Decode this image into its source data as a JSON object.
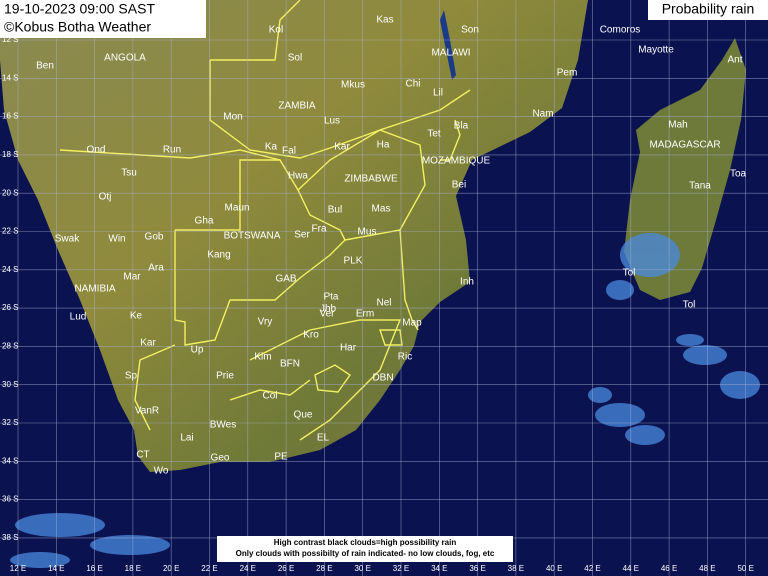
{
  "header": {
    "datetime": "19-10-2023 09:00 SAST",
    "credit": "©Kobus Botha Weather",
    "product": "Probability rain"
  },
  "legend": [
    "High contrast black clouds=high possibility rain",
    "Only clouds with possibilty of rain indicated- no low clouds, fog, etc"
  ],
  "lat_labels": [
    "12 S",
    "14 S",
    "16 S",
    "18 S",
    "20 S",
    "22 S",
    "24 S",
    "26 S",
    "28 S",
    "30 S",
    "32 S",
    "34 S",
    "36 S",
    "38 S"
  ],
  "lon_labels": [
    "12 E",
    "14 E",
    "16 E",
    "18 E",
    "20 E",
    "22 E",
    "24 E",
    "26 E",
    "28 E",
    "30 E",
    "32 E",
    "34 E",
    "36 E",
    "38 E",
    "40 E",
    "42 E",
    "44 E",
    "46 E",
    "48 E",
    "50 E"
  ],
  "places": [
    "Kas",
    "Kol",
    "Sol",
    "Son",
    "MALAWI",
    "Comoros",
    "Mayotte",
    "Ant",
    "Ben",
    "ANGOLA",
    "Mkus",
    "Chi",
    "Lil",
    "Pem",
    "ZAMBIA",
    "Mon",
    "Lus",
    "Bla",
    "Nam",
    "Mah",
    "Ond",
    "Run",
    "Ka",
    "Fal",
    "Kar",
    "Ha",
    "Tet",
    "MOZAMBIQUE",
    "MADAGASCAR",
    "Tsu",
    "Hwa",
    "ZIMBABWE",
    "Bei",
    "Tana",
    "Toa",
    "Otj",
    "Maun",
    "Bul",
    "Mas",
    "Gha",
    "Swak",
    "Win",
    "Gob",
    "BOTSWANA",
    "Ser",
    "Fra",
    "Mus",
    "Kang",
    "PLK",
    "Ara",
    "Mar",
    "GAB",
    "Inh",
    "Tol",
    "NAMIBIA",
    "Pta",
    "Jhb",
    "Nel",
    "Tol",
    "Lud",
    "Ke",
    "Vry",
    "Ver",
    "Erm",
    "Map",
    "Kar",
    "Up",
    "Kro",
    "Kim",
    "Har",
    "Ric",
    "BFN",
    "Sp",
    "Prie",
    "DBN",
    "Col",
    "VanR",
    "Que",
    "BWes",
    "Lai",
    "EL",
    "CT",
    "Geo",
    "PE",
    "Wo"
  ]
}
